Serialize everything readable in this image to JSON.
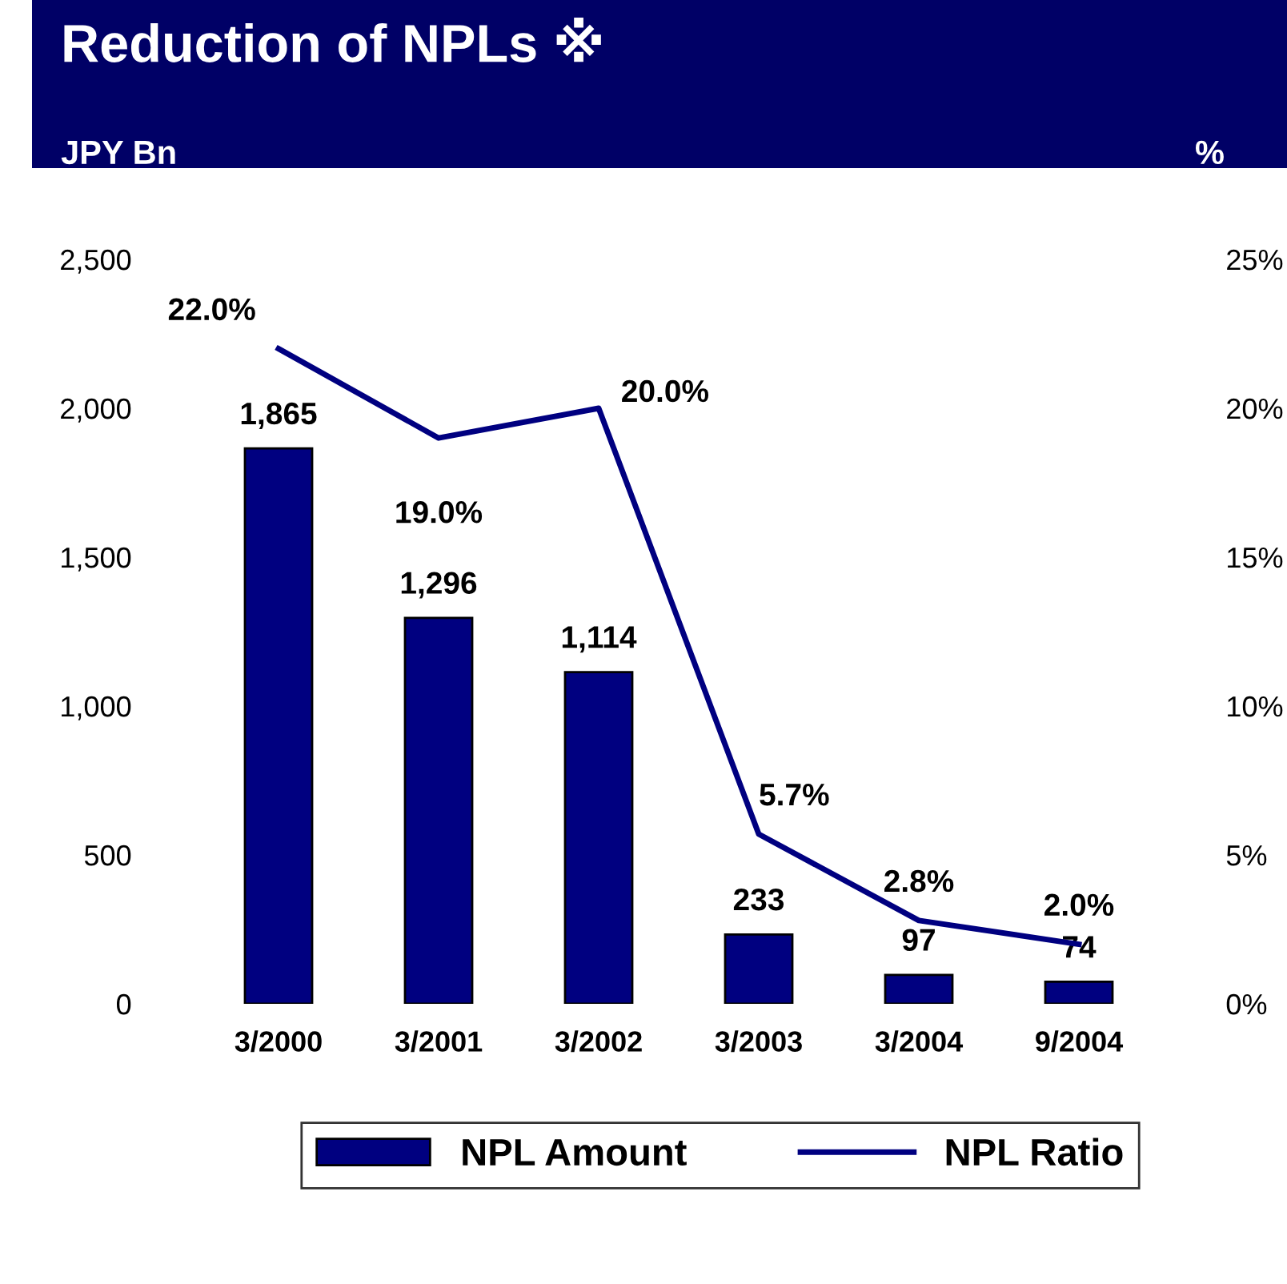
{
  "chart_data": {
    "type": "bar",
    "title": "Reduction of NPLs ※",
    "ylabel": "JPY Bn",
    "y2label": "%",
    "categories": [
      "3/2000",
      "3/2001",
      "3/2002",
      "3/2003",
      "3/2004",
      "9/2004"
    ],
    "series": [
      {
        "name": "NPL Amount",
        "color": "#000080",
        "values": [
          1865,
          1296,
          1114,
          233,
          97,
          74
        ],
        "value_labels": [
          "1,865",
          "1,296",
          "1,114",
          "233",
          "97",
          "74"
        ]
      },
      {
        "name": "NPL Ratio",
        "type": "line",
        "axis": "y2",
        "color": "#000080",
        "values": [
          22.0,
          19.0,
          20.0,
          5.7,
          2.8,
          2.0
        ],
        "value_labels": [
          "22.0%",
          "19.0%",
          "20.0%",
          "5.7%",
          "2.8%",
          "2.0%"
        ]
      }
    ],
    "ylim": [
      0,
      2500
    ],
    "yticks": [
      0,
      500,
      {
        "value": 1000,
        "label": "1,000"
      },
      {
        "value": 1500,
        "label": "1,500"
      },
      {
        "value": 2000,
        "label": "2,000"
      },
      {
        "value": 2500,
        "label": "2,500"
      }
    ],
    "y2lim": [
      0,
      25
    ],
    "y2ticks": [
      {
        "value": 0,
        "label": "0%"
      },
      {
        "value": 5,
        "label": "5%"
      },
      {
        "value": 10,
        "label": "10%"
      },
      {
        "value": 15,
        "label": "15%"
      },
      {
        "value": 20,
        "label": "20%"
      },
      {
        "value": 25,
        "label": "25%"
      }
    ],
    "grid": false,
    "legend": "bottom",
    "marker": "none",
    "line_style": "solid"
  }
}
